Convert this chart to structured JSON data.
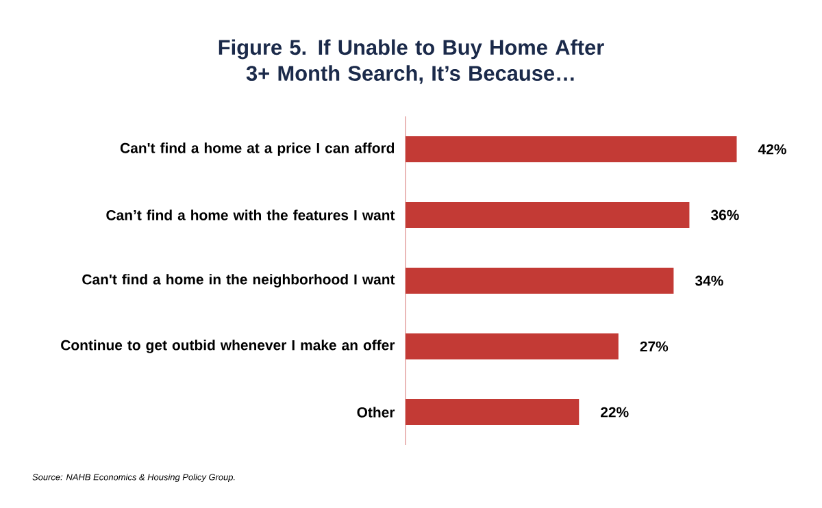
{
  "chart_data": {
    "type": "bar",
    "orientation": "horizontal",
    "title": "Figure 5. If Unable to Buy Home After 3+ Month Search, It’s Because…",
    "categories": [
      "Can't find a home at a price I can afford",
      "Can’t find a home with the features I want",
      "Can't find a home in the neighborhood I want",
      "Continue to get outbid whenever I make an offer",
      "Other"
    ],
    "values": [
      42,
      36,
      34,
      27,
      22
    ],
    "value_labels": [
      "42%",
      "36%",
      "34%",
      "27%",
      "22%"
    ],
    "color": "#c33a35",
    "annotations": [
      "Source: NAHB Economics & Housing Policy Group."
    ]
  }
}
